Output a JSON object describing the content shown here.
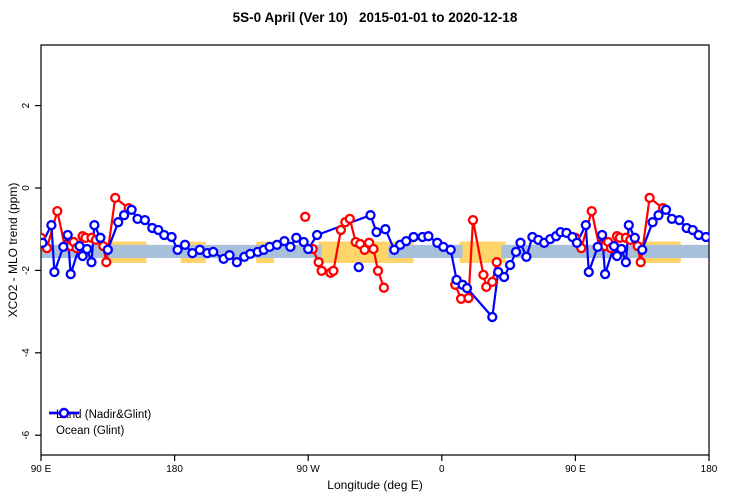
{
  "title": "5S-0 April (Ver 10)   2015-01-01 to 2020-12-18",
  "chart_data": {
    "type": "line",
    "title": "5S-0 April (Ver 10)   2015-01-01 to 2020-12-18",
    "xlabel": "Longitude (deg E)",
    "ylabel": "XCO2 - MLO trend (ppm)",
    "xlim": [
      90,
      540
    ],
    "ylim": [
      -6.48,
      3.47
    ],
    "grid": false,
    "legend_position": "bottom-left",
    "x_axis": {
      "ticks": [
        {
          "pos": 90,
          "label": "90 E"
        },
        {
          "pos": 180,
          "label": "180"
        },
        {
          "pos": 270,
          "label": "90 W"
        },
        {
          "pos": 360,
          "label": "0"
        },
        {
          "pos": 450,
          "label": "90 E"
        },
        {
          "pos": 540,
          "label": "180"
        }
      ]
    },
    "y_axis": {
      "ticks": [
        {
          "pos": 2,
          "label": "2"
        },
        {
          "pos": 0,
          "label": "0"
        },
        {
          "pos": -2,
          "label": "-2"
        },
        {
          "pos": -4,
          "label": "-4"
        },
        {
          "pos": -6,
          "label": "-6"
        }
      ]
    },
    "legend": [
      {
        "label": "Land (Nadir&Glint)",
        "color": "#ff0000"
      },
      {
        "label": "Ocean (Glint)",
        "color": "#0000ff"
      }
    ],
    "bands": {
      "land": {
        "color": "#ffd469",
        "y_range": [
          -1.82,
          -1.3
        ],
        "segments": [
          [
            136,
            161
          ],
          [
            184,
            201
          ],
          [
            235,
            247
          ],
          [
            277,
            341
          ],
          [
            372,
            403
          ],
          [
            496,
            521
          ]
        ]
      },
      "ocean": {
        "color": "#a8c0da",
        "y_range": [
          -1.7,
          -1.38
        ],
        "segments": [
          [
            90,
            279
          ],
          [
            324,
            374
          ],
          [
            400,
            540
          ]
        ]
      }
    },
    "series": [
      {
        "id": "land",
        "name": "Land (Nadir&Glint)",
        "color": "#ff0000",
        "segments": [
          [
            [
              90,
              -1.21
            ],
            [
              94,
              -1.46
            ],
            [
              101,
              -0.56
            ],
            [
              106,
              -1.41
            ],
            [
              110,
              -1.41
            ],
            [
              112,
              -1.31
            ],
            [
              114,
              -1.46
            ],
            [
              118,
              -1.17
            ],
            [
              120,
              -1.21
            ],
            [
              124,
              -1.21
            ],
            [
              127,
              -1.26
            ],
            [
              132,
              -1.41
            ],
            [
              134,
              -1.8
            ],
            [
              140,
              -0.24
            ],
            [
              149,
              -0.49
            ]
          ],
          [
            [
              268,
              -0.7
            ]
          ],
          [
            [
              273,
              -1.48
            ],
            [
              277,
              -1.8
            ],
            [
              279,
              -2.01
            ],
            [
              285,
              -2.06
            ],
            [
              287,
              -2.01
            ],
            [
              292,
              -1.02
            ],
            [
              295,
              -0.83
            ],
            [
              298,
              -0.75
            ],
            [
              302,
              -1.31
            ],
            [
              305,
              -1.36
            ],
            [
              308,
              -1.5
            ],
            [
              311,
              -1.33
            ],
            [
              314,
              -1.48
            ],
            [
              317,
              -2.01
            ],
            [
              321,
              -2.42
            ]
          ],
          [
            [
              369,
              -2.35
            ],
            [
              373,
              -2.69
            ],
            [
              378,
              -2.67
            ],
            [
              381,
              -0.78
            ],
            [
              388,
              -2.11
            ],
            [
              390,
              -2.4
            ],
            [
              394,
              -2.28
            ],
            [
              397,
              -1.8
            ]
          ],
          [
            [
              450,
              -1.21
            ],
            [
              454,
              -1.46
            ],
            [
              461,
              -0.56
            ],
            [
              466,
              -1.41
            ],
            [
              470,
              -1.41
            ],
            [
              472,
              -1.31
            ],
            [
              474,
              -1.46
            ],
            [
              478,
              -1.17
            ],
            [
              480,
              -1.21
            ],
            [
              484,
              -1.21
            ],
            [
              487,
              -1.26
            ],
            [
              492,
              -1.41
            ],
            [
              494,
              -1.8
            ],
            [
              500,
              -0.24
            ],
            [
              509,
              -0.49
            ]
          ]
        ]
      },
      {
        "id": "ocean",
        "name": "Ocean (Glint)",
        "color": "#0000ff",
        "segments": [
          [
            [
              91,
              -1.33
            ],
            [
              97,
              -0.9
            ],
            [
              99,
              -2.04
            ],
            [
              105,
              -1.43
            ],
            [
              108,
              -1.14
            ],
            [
              110,
              -2.09
            ],
            [
              116,
              -1.41
            ],
            [
              118,
              -1.65
            ],
            [
              121,
              -1.48
            ],
            [
              124,
              -1.8
            ],
            [
              126,
              -0.9
            ],
            [
              130,
              -1.21
            ],
            [
              135,
              -1.5
            ],
            [
              142,
              -0.83
            ],
            [
              146,
              -0.66
            ],
            [
              151,
              -0.53
            ],
            [
              155,
              -0.75
            ],
            [
              160,
              -0.78
            ],
            [
              165,
              -0.97
            ],
            [
              169,
              -1.02
            ],
            [
              173,
              -1.14
            ],
            [
              178,
              -1.19
            ],
            [
              182,
              -1.5
            ],
            [
              187,
              -1.38
            ],
            [
              192,
              -1.58
            ],
            [
              197,
              -1.5
            ],
            [
              202,
              -1.58
            ],
            [
              206,
              -1.55
            ],
            [
              213,
              -1.72
            ],
            [
              217,
              -1.63
            ],
            [
              222,
              -1.8
            ],
            [
              227,
              -1.67
            ],
            [
              231,
              -1.6
            ],
            [
              236,
              -1.55
            ],
            [
              240,
              -1.5
            ],
            [
              244,
              -1.43
            ],
            [
              249,
              -1.38
            ],
            [
              254,
              -1.29
            ],
            [
              258,
              -1.43
            ],
            [
              262,
              -1.21
            ],
            [
              267,
              -1.31
            ],
            [
              270,
              -1.48
            ],
            [
              276,
              -1.14
            ],
            [
              312,
              -0.66
            ],
            [
              316,
              -1.07
            ],
            [
              322,
              -1.0
            ],
            [
              328,
              -1.5
            ],
            [
              332,
              -1.38
            ],
            [
              336,
              -1.29
            ],
            [
              341,
              -1.19
            ],
            [
              347,
              -1.19
            ],
            [
              351,
              -1.17
            ],
            [
              357,
              -1.33
            ],
            [
              361,
              -1.43
            ],
            [
              366,
              -1.5
            ],
            [
              370,
              -2.23
            ],
            [
              374,
              -2.35
            ],
            [
              377,
              -2.43
            ],
            [
              394,
              -3.13
            ],
            [
              398,
              -2.04
            ],
            [
              402,
              -2.16
            ],
            [
              406,
              -1.87
            ],
            [
              410,
              -1.55
            ],
            [
              413,
              -1.33
            ],
            [
              417,
              -1.67
            ],
            [
              421,
              -1.19
            ],
            [
              425,
              -1.26
            ],
            [
              429,
              -1.33
            ],
            [
              433,
              -1.24
            ],
            [
              437,
              -1.17
            ],
            [
              440,
              -1.07
            ],
            [
              444,
              -1.09
            ],
            [
              448,
              -1.19
            ],
            [
              451,
              -1.33
            ],
            [
              457,
              -0.9
            ],
            [
              459,
              -2.04
            ],
            [
              465,
              -1.43
            ],
            [
              468,
              -1.14
            ],
            [
              470,
              -2.09
            ],
            [
              476,
              -1.41
            ],
            [
              478,
              -1.65
            ],
            [
              481,
              -1.48
            ],
            [
              484,
              -1.8
            ],
            [
              486,
              -0.9
            ],
            [
              490,
              -1.21
            ],
            [
              495,
              -1.5
            ],
            [
              502,
              -0.83
            ],
            [
              506,
              -0.66
            ],
            [
              511,
              -0.53
            ],
            [
              515,
              -0.75
            ],
            [
              520,
              -0.78
            ],
            [
              525,
              -0.97
            ],
            [
              529,
              -1.02
            ],
            [
              533,
              -1.14
            ],
            [
              538,
              -1.19
            ]
          ],
          [
            [
              304,
              -1.92
            ]
          ]
        ]
      }
    ]
  }
}
